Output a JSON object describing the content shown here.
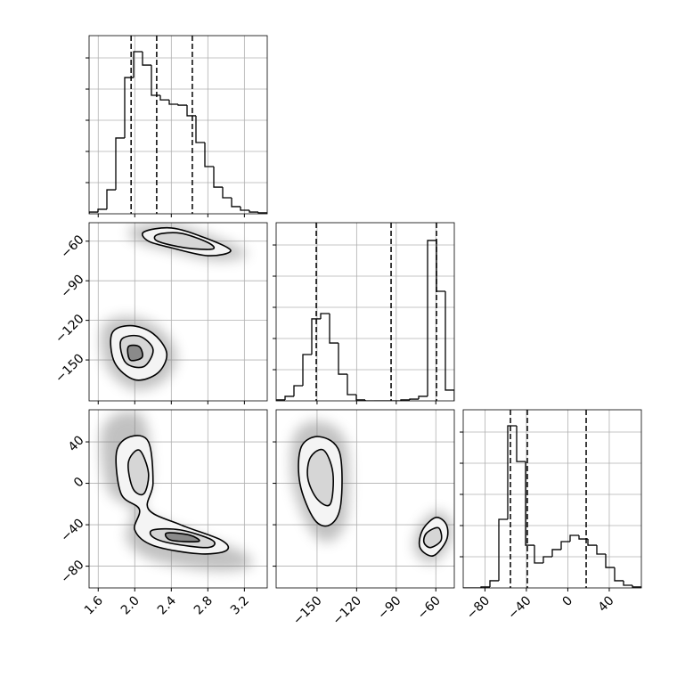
{
  "chart_data": [
    {
      "type": "histogram",
      "bins": [
        1.5,
        1.5975,
        1.695,
        1.7925,
        1.89,
        1.9875,
        2.085,
        2.1825,
        2.28,
        2.3775,
        2.475,
        2.5725,
        2.67,
        2.7675,
        2.865,
        2.9625,
        3.06,
        3.1575,
        3.255,
        3.3525,
        3.45
      ],
      "values": [
        11,
        29,
        154,
        486,
        874,
        1040,
        954,
        760,
        731,
        703,
        697,
        629,
        457,
        303,
        171,
        103,
        46,
        23,
        11,
        6
      ],
      "quantiles": [
        1.96,
        2.24,
        2.63
      ],
      "xlim": [
        1.5,
        3.45
      ],
      "xticks": [
        1.6,
        2,
        2.4,
        2.8,
        3.2
      ],
      "xtick_labels": false,
      "ylim": [
        0,
        1143
      ],
      "yticks": [
        200,
        400,
        600,
        800,
        1000
      ],
      "ytick_labels": false,
      "grid": true
    },
    {
      "type": "contour",
      "contours": [
        {
          "x": [
            2.1,
            2.4,
            2.75,
            3.05,
            2.8,
            2.4,
            2.15
          ],
          "y": [
            -53,
            -50,
            -57,
            -67,
            -71,
            -65,
            -60
          ]
        },
        {
          "x": [
            2.25,
            2.5,
            2.8,
            2.85,
            2.55,
            2.25
          ],
          "y": [
            -55,
            -54,
            -61,
            -66,
            -65,
            -60
          ]
        },
        {
          "x": [
            1.75,
            1.95,
            2.2,
            2.35,
            2.25,
            2.0,
            1.78
          ],
          "y": [
            -130,
            -124,
            -130,
            -145,
            -160,
            -165,
            -152
          ]
        },
        {
          "x": [
            1.85,
            2.05,
            2.2,
            2.1,
            1.9
          ],
          "y": [
            -135,
            -132,
            -142,
            -155,
            -152
          ]
        },
        {
          "x": [
            1.93,
            2.05,
            2.08,
            1.95
          ],
          "y": [
            -140,
            -140,
            -148,
            -150
          ]
        }
      ],
      "xlim": [
        1.5,
        3.45
      ],
      "xticks": [
        1.6,
        2,
        2.4,
        2.8,
        3.2
      ],
      "xtick_labels": false,
      "ylim": [
        -181,
        -46
      ],
      "yticks": [
        {
          "value": -150,
          "label": "−150"
        },
        {
          "value": -120,
          "label": "−120"
        },
        {
          "value": -90,
          "label": "−90"
        },
        {
          "value": -60,
          "label": "−60"
        }
      ],
      "ytick_labels": true,
      "grid": true
    },
    {
      "type": "histogram",
      "bins": [
        -181,
        -174.25,
        -167.5,
        -160.75,
        -154,
        -147.25,
        -140.5,
        -133.75,
        -127,
        -120.25,
        -113.5,
        -106.75,
        -100,
        -93.25,
        -86.5,
        -79.75,
        -73,
        -66.25,
        -59.5,
        -52.75,
        -46
      ],
      "values": [
        6,
        29,
        97,
        297,
        526,
        560,
        371,
        171,
        40,
        6,
        0,
        0,
        0,
        0,
        6,
        11,
        29,
        1029,
        703,
        69
      ],
      "quantiles": [
        -150.6,
        -93.9,
        -59.5
      ],
      "xlim": [
        -181,
        -46
      ],
      "xticks": [
        -150,
        -120,
        -90,
        -60
      ],
      "xtick_labels": false,
      "ylim": [
        0,
        1143
      ],
      "yticks": [
        200,
        400,
        600,
        800,
        1000
      ],
      "ytick_labels": false,
      "grid": true
    },
    {
      "type": "contour",
      "contours": [
        {
          "x": [
            1.8,
            1.95,
            2.15,
            2.2,
            2.15,
            2.5,
            2.95,
            3.0,
            2.7,
            2.2,
            2.0,
            2.05,
            1.85
          ],
          "y": [
            30,
            45,
            40,
            0,
            -25,
            -40,
            -55,
            -65,
            -68,
            -60,
            -45,
            -25,
            -10
          ]
        },
        {
          "x": [
            1.93,
            2.05,
            2.15,
            2.1,
            1.98
          ],
          "y": [
            20,
            32,
            10,
            -10,
            -5
          ]
        },
        {
          "x": [
            2.2,
            2.5,
            2.85,
            2.8,
            2.4,
            2.2
          ],
          "y": [
            -45,
            -45,
            -55,
            -62,
            -58,
            -52
          ]
        },
        {
          "x": [
            2.35,
            2.6,
            2.7,
            2.4
          ],
          "y": [
            -48,
            -50,
            -56,
            -55
          ]
        }
      ],
      "xlim": [
        1.5,
        3.45
      ],
      "xticks": [
        1.6,
        {
          "value": 2,
          "label": "2.0"
        },
        2.4,
        2.8,
        3.2
      ],
      "xtick_labels": true,
      "ylim": [
        -101,
        71
      ],
      "yticks": [
        {
          "value": -80,
          "label": "−80"
        },
        {
          "value": -40,
          "label": "−40"
        },
        0,
        40
      ],
      "ytick_labels": true,
      "grid": true
    },
    {
      "type": "contour",
      "contours": [
        {
          "x": [
            -162,
            -148,
            -133,
            -132,
            -140,
            -152,
            -163
          ],
          "y": [
            35,
            45,
            30,
            -20,
            -40,
            -35,
            0
          ]
        },
        {
          "x": [
            -155,
            -145,
            -138,
            -140,
            -150,
            -157
          ],
          "y": [
            25,
            32,
            10,
            -20,
            -15,
            5
          ]
        },
        {
          "x": [
            -70,
            -60,
            -52,
            -52,
            -62,
            -72
          ],
          "y": [
            -45,
            -33,
            -40,
            -55,
            -70,
            -62
          ]
        },
        {
          "x": [
            -67,
            -58,
            -56,
            -64,
            -69
          ],
          "y": [
            -48,
            -43,
            -55,
            -62,
            -57
          ]
        }
      ],
      "xlim": [
        -181,
        -46
      ],
      "xticks": [
        {
          "value": -150,
          "label": "−150"
        },
        {
          "value": -120,
          "label": "−120"
        },
        {
          "value": -90,
          "label": "−90"
        },
        {
          "value": -60,
          "label": "−60"
        }
      ],
      "xtick_labels": true,
      "ylim": [
        -101,
        71
      ],
      "yticks": [
        -80,
        -40,
        0,
        40
      ],
      "ytick_labels": false,
      "grid": true
    },
    {
      "type": "histogram",
      "bins": [
        -101,
        -92.4,
        -83.8,
        -75.2,
        -66.6,
        -58,
        -49.4,
        -40.8,
        -32.2,
        -23.6,
        -15,
        -6.4,
        2.2,
        10.8,
        19.4,
        28,
        36.6,
        45.2,
        53.8,
        62.4,
        71
      ],
      "values": [
        0,
        0,
        6,
        46,
        440,
        1040,
        811,
        274,
        160,
        200,
        246,
        297,
        337,
        314,
        274,
        217,
        131,
        46,
        17,
        6
      ],
      "quantiles": [
        -55.4,
        -39.1,
        17.7
      ],
      "xlim": [
        -101,
        71
      ],
      "xticks": [
        {
          "value": -80,
          "label": "−80"
        },
        {
          "value": -40,
          "label": "−40"
        },
        0,
        40
      ],
      "xtick_labels": true,
      "ylim": [
        0,
        1143
      ],
      "yticks": [
        200,
        400,
        600,
        800,
        1000
      ],
      "ytick_labels": false,
      "grid": true
    }
  ]
}
